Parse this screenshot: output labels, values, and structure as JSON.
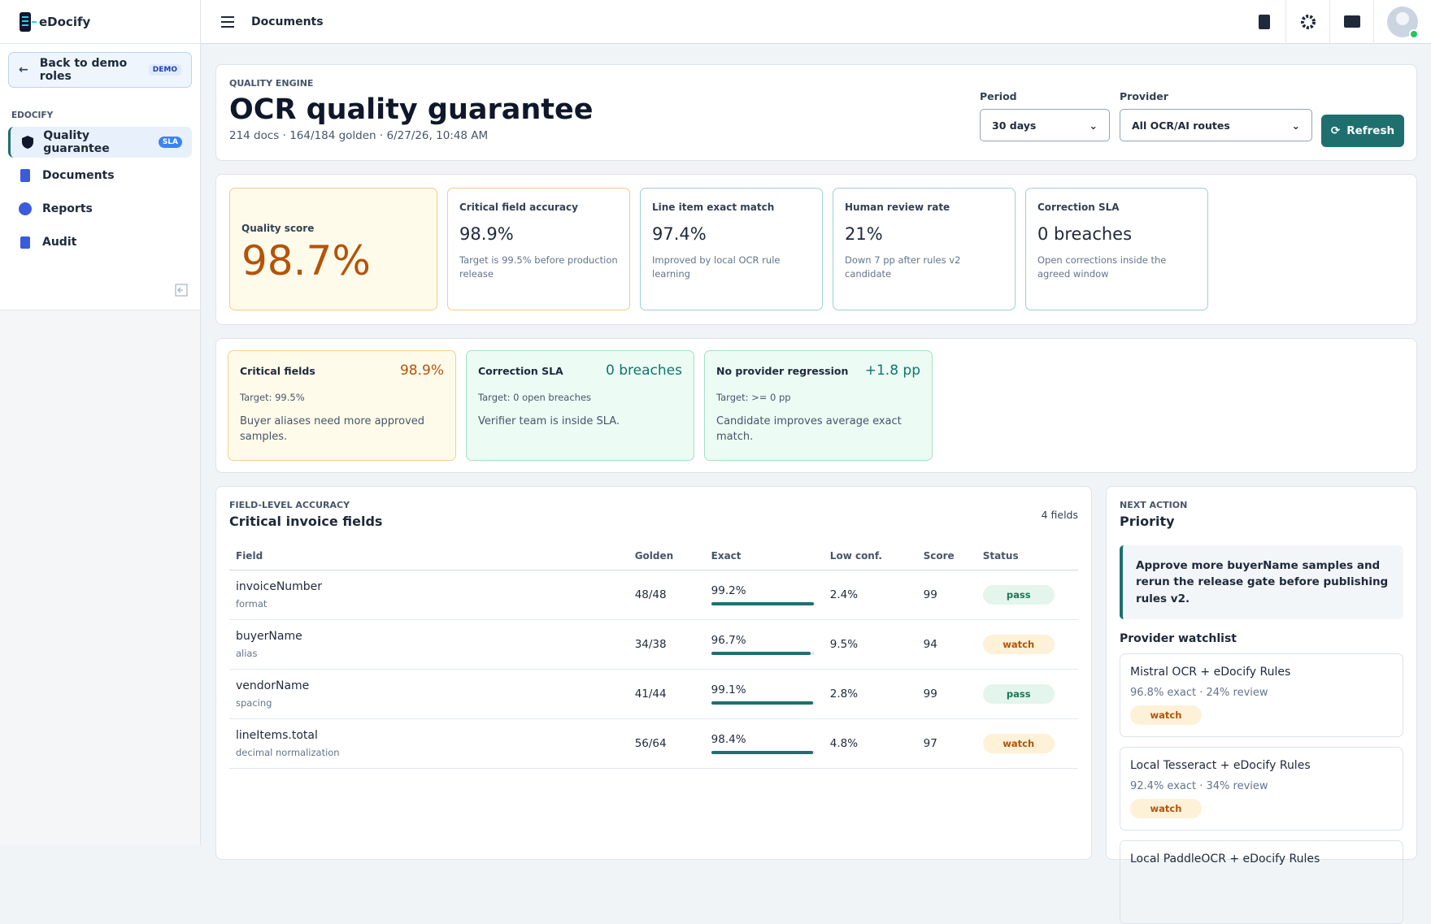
{
  "app": {
    "brand": "eDocify",
    "topbar_title": "Documents"
  },
  "sidebar": {
    "back": "Back to demo roles",
    "back_badge": "DEMO",
    "section": "EDOCIFY",
    "nav": [
      {
        "label": "Quality guarantee",
        "badge": "SLA"
      },
      {
        "label": "Documents"
      },
      {
        "label": "Reports"
      },
      {
        "label": "Audit"
      }
    ]
  },
  "header": {
    "eyebrow": "QUALITY ENGINE",
    "title": "OCR quality guarantee",
    "meta": "214 docs · 164/184 golden · 6/27/26, 10:48 AM",
    "period_label": "Period",
    "period": "30 days",
    "provider_label": "Provider",
    "provider": "All OCR/AI routes",
    "refresh": "Refresh"
  },
  "kpis": [
    {
      "label": "Quality score",
      "value": "98.7%"
    },
    {
      "label": "Critical field accuracy",
      "value": "98.9%",
      "note": "Target is 99.5% before production release"
    },
    {
      "label": "Line item exact match",
      "value": "97.4%",
      "note": "Improved by local OCR rule learning"
    },
    {
      "label": "Human review rate",
      "value": "21%",
      "note": "Down 7 pp after rules v2 candidate"
    },
    {
      "label": "Correction SLA",
      "value": "0 breaches",
      "note": "Open corrections inside the agreed window"
    }
  ],
  "targets": [
    {
      "label": "Critical fields",
      "value": "98.9%",
      "target": "Target: 99.5%",
      "note": "Buyer aliases need more approved samples."
    },
    {
      "label": "Correction SLA",
      "value": "0 breaches",
      "target": "Target: 0 open breaches",
      "note": "Verifier team is inside SLA."
    },
    {
      "label": "No provider regression",
      "value": "+1.8 pp",
      "target": "Target: >= 0 pp",
      "note": "Candidate improves average exact match."
    }
  ],
  "fields": {
    "eyebrow": "FIELD-LEVEL ACCURACY",
    "title": "Critical invoice fields",
    "count": "4 fields",
    "columns": [
      "Field",
      "Golden",
      "Exact",
      "Low conf.",
      "Score",
      "Status"
    ],
    "rows": [
      {
        "field": "invoiceNumber",
        "sub": "format",
        "golden": "48/48",
        "exact": {
          "value": 99.2,
          "label": "99.2%"
        },
        "low": "2.4%",
        "score": 99,
        "status": "pass"
      },
      {
        "field": "buyerName",
        "sub": "alias",
        "golden": "34/38",
        "exact": {
          "value": 96.7,
          "label": "96.7%"
        },
        "low": "9.5%",
        "score": 94,
        "status": "watch"
      },
      {
        "field": "vendorName",
        "sub": "spacing",
        "golden": "41/44",
        "exact": {
          "value": 99.1,
          "label": "99.1%"
        },
        "low": "2.8%",
        "score": 99,
        "status": "pass"
      },
      {
        "field": "lineItems.total",
        "sub": "decimal normalization",
        "golden": "56/64",
        "exact": {
          "value": 98.4,
          "label": "98.4%"
        },
        "low": "4.8%",
        "score": 97,
        "status": "watch"
      }
    ]
  },
  "next": {
    "eyebrow": "NEXT ACTION",
    "title": "Priority",
    "message": "Approve more buyerName samples and rerun the release gate before publishing rules v2.",
    "watchlist_title": "Provider watchlist",
    "providers": [
      {
        "name": "Mistral OCR + eDocify Rules",
        "meta": "96.8% exact · 24% review",
        "status": "watch"
      },
      {
        "name": "Local Tesseract + eDocify Rules",
        "meta": "92.4% exact · 34% review",
        "status": "watch"
      },
      {
        "name": "Local PaddleOCR + eDocify Rules"
      }
    ]
  }
}
